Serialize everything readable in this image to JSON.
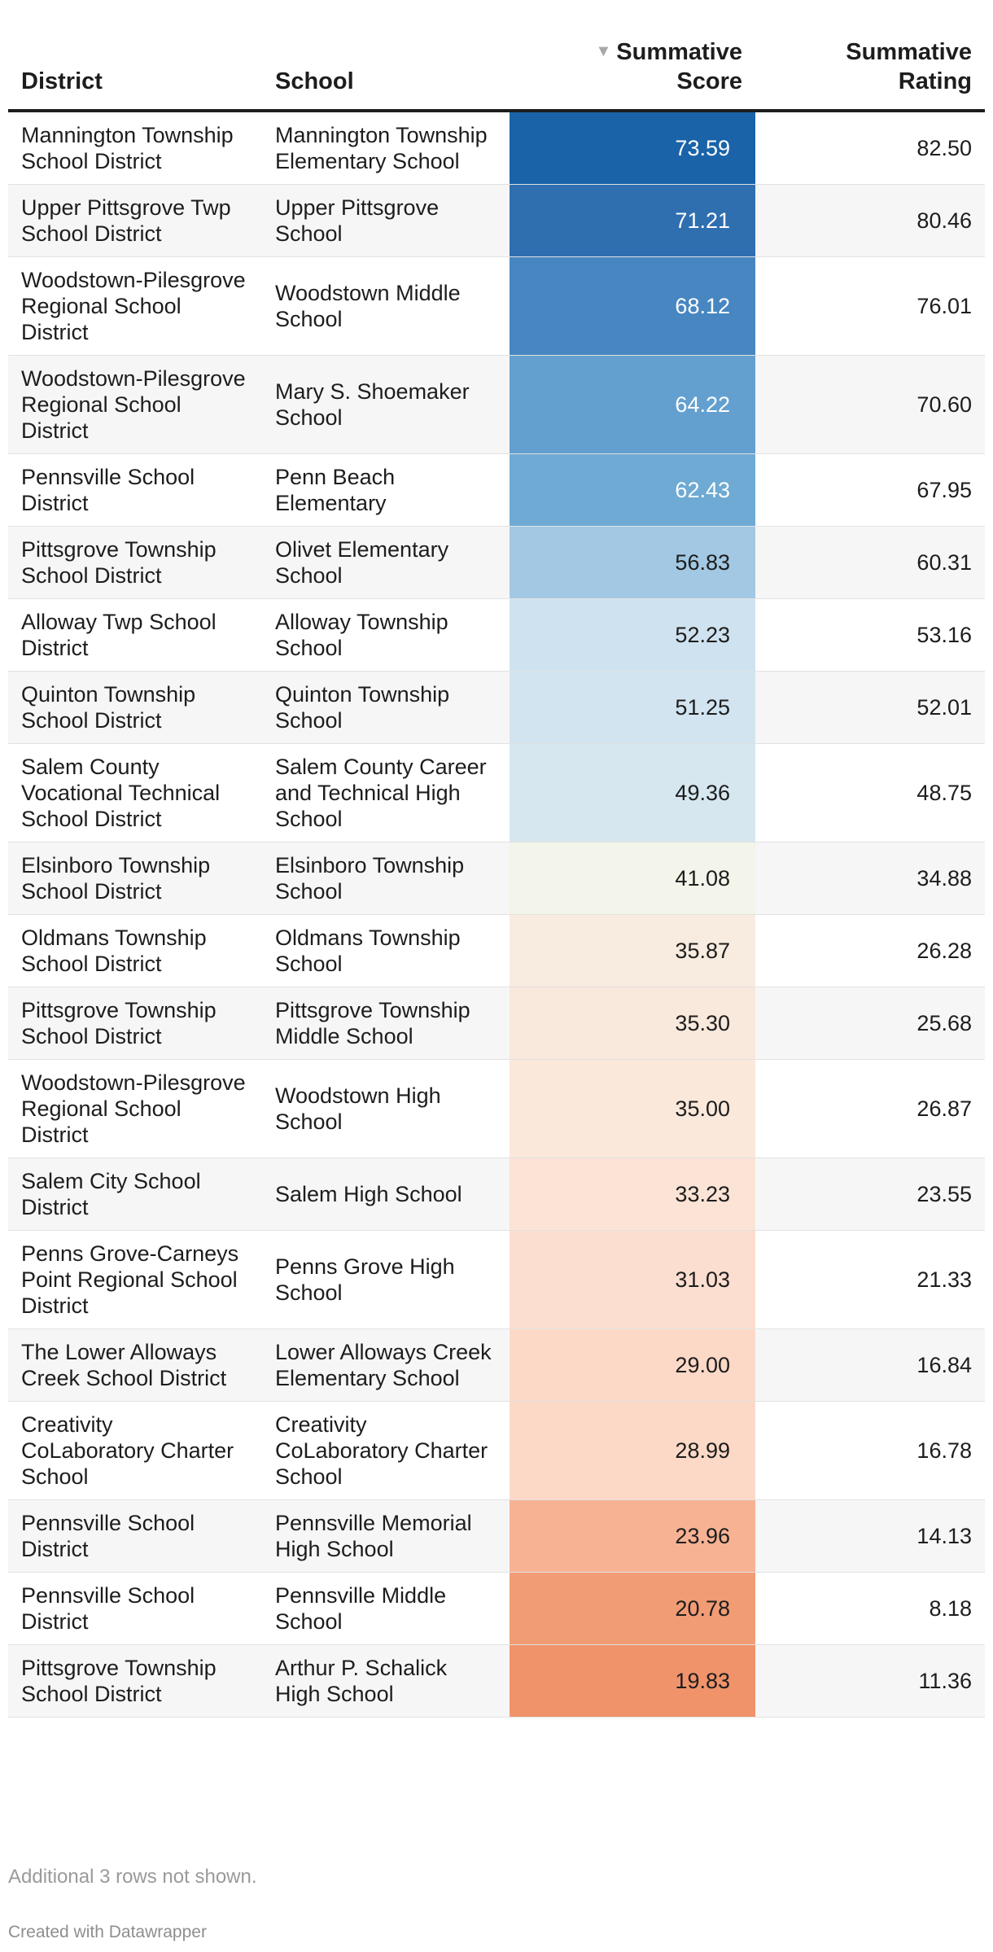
{
  "chart_data": {
    "type": "table",
    "columns": {
      "district": "District",
      "school": "School",
      "score_line1": "Summative",
      "score_line2": "Score",
      "rating_line1": "Summative",
      "rating_line2": "Rating"
    },
    "sorted_by": "Summative Score",
    "sort_direction": "descending",
    "sort_icon": "sort-descending-icon",
    "color_scale": {
      "low": "#f0936b",
      "mid": "#f4f4ec",
      "high": "#1a63a9"
    },
    "rows": [
      {
        "district": "Mannington Township School District",
        "school": "Mannington Township Elementary School",
        "score": "73.59",
        "score_value": 73.59,
        "rating": "82.50",
        "fill": "#1a63a9",
        "text_color": "#ffffff"
      },
      {
        "district": "Upper Pittsgrove Twp School District",
        "school": "Upper Pittsgrove School",
        "score": "71.21",
        "score_value": 71.21,
        "rating": "80.46",
        "fill": "#2f6fb0",
        "text_color": "#ffffff"
      },
      {
        "district": "Woodstown-Pilesgrove Regional School District",
        "school": "Woodstown Middle School",
        "score": "68.12",
        "score_value": 68.12,
        "rating": "76.01",
        "fill": "#4786c1",
        "text_color": "#ffffff"
      },
      {
        "district": "Woodstown-Pilesgrove Regional School District",
        "school": "Mary S. Shoemaker School",
        "score": "64.22",
        "score_value": 64.22,
        "rating": "70.60",
        "fill": "#63a0cf",
        "text_color": "#ffffff"
      },
      {
        "district": "Pennsville School District",
        "school": "Penn Beach Elementary",
        "score": "62.43",
        "score_value": 62.43,
        "rating": "67.95",
        "fill": "#6eaad3",
        "text_color": "#ffffff"
      },
      {
        "district": "Pittsgrove Township School District",
        "school": "Olivet Elementary School",
        "score": "56.83",
        "score_value": 56.83,
        "rating": "60.31",
        "fill": "#a2c8e3",
        "text_color": "#1d1d1d"
      },
      {
        "district": "Alloway Twp School District",
        "school": "Alloway Township School",
        "score": "52.23",
        "score_value": 52.23,
        "rating": "53.16",
        "fill": "#cfe2ef",
        "text_color": "#1d1d1d"
      },
      {
        "district": "Quinton Township School District",
        "school": "Quinton Township School",
        "score": "51.25",
        "score_value": 51.25,
        "rating": "52.01",
        "fill": "#d2e4ef",
        "text_color": "#1d1d1d"
      },
      {
        "district": "Salem County Vocational Technical School District",
        "school": "Salem County Career and Technical High School",
        "score": "49.36",
        "score_value": 49.36,
        "rating": "48.75",
        "fill": "#d6e7ef",
        "text_color": "#1d1d1d"
      },
      {
        "district": "Elsinboro Township School District",
        "school": "Elsinboro Township School",
        "score": "41.08",
        "score_value": 41.08,
        "rating": "34.88",
        "fill": "#f3f4ea",
        "text_color": "#1d1d1d"
      },
      {
        "district": "Oldmans Township School District",
        "school": "Oldmans Township School",
        "score": "35.87",
        "score_value": 35.87,
        "rating": "26.28",
        "fill": "#f8ebdf",
        "text_color": "#1d1d1d"
      },
      {
        "district": "Pittsgrove Township School District",
        "school": "Pittsgrove Township Middle School",
        "score": "35.30",
        "score_value": 35.3,
        "rating": "25.68",
        "fill": "#f9e8dc",
        "text_color": "#1d1d1d"
      },
      {
        "district": "Woodstown-Pilesgrove Regional School District",
        "school": "Woodstown High School",
        "score": "35.00",
        "score_value": 35.0,
        "rating": "26.87",
        "fill": "#fae8db",
        "text_color": "#1d1d1d"
      },
      {
        "district": "Salem City School District",
        "school": "Salem High School",
        "score": "33.23",
        "score_value": 33.23,
        "rating": "23.55",
        "fill": "#fbe3d5",
        "text_color": "#1d1d1d"
      },
      {
        "district": "Penns Grove-Carneys Point Regional School District",
        "school": "Penns Grove High School",
        "score": "31.03",
        "score_value": 31.03,
        "rating": "21.33",
        "fill": "#fbdecf",
        "text_color": "#1d1d1d"
      },
      {
        "district": "The Lower Alloways Creek School District",
        "school": "Lower Alloways Creek Elementary School",
        "score": "29.00",
        "score_value": 29.0,
        "rating": "16.84",
        "fill": "#fcd9c6",
        "text_color": "#1d1d1d"
      },
      {
        "district": "Creativity CoLaboratory Charter School",
        "school": "Creativity CoLaboratory Charter School",
        "score": "28.99",
        "score_value": 28.99,
        "rating": "16.78",
        "fill": "#fcd9c6",
        "text_color": "#1d1d1d"
      },
      {
        "district": "Pennsville School District",
        "school": "Pennsville Memorial High School",
        "score": "23.96",
        "score_value": 23.96,
        "rating": "14.13",
        "fill": "#f7b293",
        "text_color": "#1d1d1d"
      },
      {
        "district": "Pennsville School District",
        "school": "Pennsville Middle School",
        "score": "20.78",
        "score_value": 20.78,
        "rating": "8.18",
        "fill": "#f19c75",
        "text_color": "#1d1d1d"
      },
      {
        "district": "Pittsgrove Township School District",
        "school": "Arthur P. Schalick High School",
        "score": "19.83",
        "score_value": 19.83,
        "rating": "11.36",
        "fill": "#f0936b",
        "text_color": "#1d1d1d"
      }
    ]
  },
  "footnote": "Additional 3 rows not shown.",
  "credit": "Created with Datawrapper"
}
